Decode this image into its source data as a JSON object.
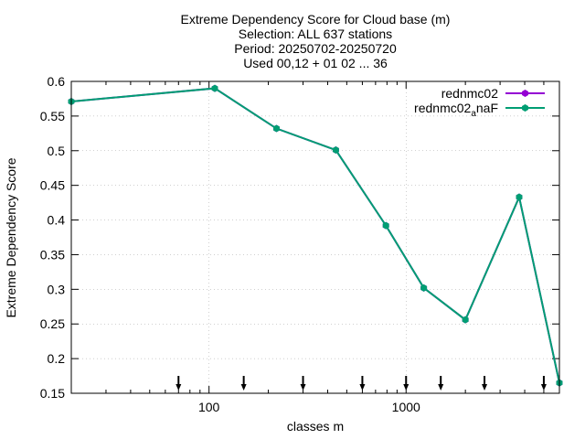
{
  "chart_data": {
    "type": "line",
    "title_lines": [
      "Extreme Dependency Score  for Cloud base (m)",
      "Selection: ALL    637 stations",
      "Period: 20250702-20250720",
      "Used 00,12 + 01 02 ... 36"
    ],
    "xlabel": "classes m",
    "ylabel": "Extreme Dependency Score",
    "x_scale": "log",
    "xlim": [
      20,
      6000
    ],
    "ylim": [
      0.15,
      0.6
    ],
    "x_ticks": [
      100,
      1000
    ],
    "x_tick_labels": [
      "100",
      "1000"
    ],
    "y_ticks": [
      0.15,
      0.2,
      0.25,
      0.3,
      0.35,
      0.4,
      0.45,
      0.5,
      0.55,
      0.6
    ],
    "y_tick_labels": [
      "0.15",
      "0.2",
      "0.25",
      "0.3",
      "0.35",
      "0.4",
      "0.45",
      "0.5",
      "0.55",
      "0.6"
    ],
    "grid": true,
    "legend_position": "top-right",
    "x": [
      20,
      107,
      220,
      440,
      790,
      1230,
      2000,
      3750,
      6000
    ],
    "series": [
      {
        "name": "rednmc02",
        "color": "#9400d3",
        "values": [
          0.571,
          0.59,
          0.532,
          0.501,
          0.392,
          0.302,
          0.256,
          0.433,
          0.165
        ]
      },
      {
        "name": "rednmc02",
        "name_subscript": "a",
        "name_suffix": "naF",
        "color": "#009e73",
        "values": [
          0.571,
          0.59,
          0.532,
          0.501,
          0.392,
          0.302,
          0.256,
          0.433,
          0.165
        ]
      }
    ],
    "class_markers_x": [
      70,
      150,
      300,
      600,
      1000,
      1500,
      2500,
      5000
    ]
  }
}
